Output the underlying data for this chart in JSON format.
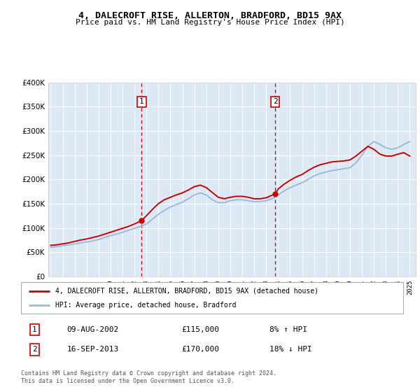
{
  "title": "4, DALECROFT RISE, ALLERTON, BRADFORD, BD15 9AX",
  "subtitle": "Price paid vs. HM Land Registry's House Price Index (HPI)",
  "legend_label_red": "4, DALECROFT RISE, ALLERTON, BRADFORD, BD15 9AX (detached house)",
  "legend_label_blue": "HPI: Average price, detached house, Bradford",
  "marker1_label": "1",
  "marker1_date": "09-AUG-2002",
  "marker1_price": "£115,000",
  "marker1_hpi": "8% ↑ HPI",
  "marker2_label": "2",
  "marker2_date": "16-SEP-2013",
  "marker2_price": "£170,000",
  "marker2_hpi": "18% ↓ HPI",
  "footer": "Contains HM Land Registry data © Crown copyright and database right 2024.\nThis data is licensed under the Open Government Licence v3.0.",
  "plot_bg_color": "#dce9f5",
  "fig_bg_color": "#ffffff",
  "line_red_color": "#cc0000",
  "line_blue_color": "#99bbdd",
  "marker_x1": 2002.6,
  "marker_y1": 115000,
  "marker_x2": 2013.75,
  "marker_y2": 170000,
  "ylim": [
    0,
    400000
  ],
  "xlim": [
    1994.8,
    2025.5
  ],
  "hpi_data": {
    "years": [
      1995.0,
      1995.5,
      1996.0,
      1996.5,
      1997.0,
      1997.5,
      1998.0,
      1998.5,
      1999.0,
      1999.5,
      2000.0,
      2000.5,
      2001.0,
      2001.5,
      2002.0,
      2002.5,
      2003.0,
      2003.5,
      2004.0,
      2004.5,
      2005.0,
      2005.5,
      2006.0,
      2006.5,
      2007.0,
      2007.5,
      2008.0,
      2008.5,
      2009.0,
      2009.5,
      2010.0,
      2010.5,
      2011.0,
      2011.5,
      2012.0,
      2012.5,
      2013.0,
      2013.5,
      2014.0,
      2014.5,
      2015.0,
      2015.5,
      2016.0,
      2016.5,
      2017.0,
      2017.5,
      2018.0,
      2018.5,
      2019.0,
      2019.5,
      2020.0,
      2020.5,
      2021.0,
      2021.5,
      2022.0,
      2022.5,
      2023.0,
      2023.5,
      2024.0,
      2024.5,
      2025.0
    ],
    "values": [
      60000,
      61000,
      63000,
      65000,
      67000,
      69000,
      71000,
      73000,
      76000,
      80000,
      84000,
      87000,
      91000,
      95000,
      99000,
      103000,
      108000,
      118000,
      128000,
      136000,
      143000,
      148000,
      153000,
      160000,
      168000,
      172000,
      168000,
      158000,
      152000,
      152000,
      156000,
      158000,
      158000,
      156000,
      154000,
      154000,
      156000,
      160000,
      168000,
      176000,
      183000,
      188000,
      193000,
      200000,
      207000,
      212000,
      215000,
      218000,
      220000,
      222000,
      224000,
      234000,
      250000,
      268000,
      278000,
      272000,
      265000,
      262000,
      265000,
      272000,
      278000
    ]
  },
  "red_data": {
    "years": [
      1995.0,
      1995.5,
      1996.0,
      1996.5,
      1997.0,
      1997.5,
      1998.0,
      1998.5,
      1999.0,
      1999.5,
      2000.0,
      2000.5,
      2001.0,
      2001.5,
      2002.0,
      2002.6,
      2003.0,
      2003.5,
      2004.0,
      2004.5,
      2005.0,
      2005.5,
      2006.0,
      2006.5,
      2007.0,
      2007.5,
      2008.0,
      2008.5,
      2009.0,
      2009.5,
      2010.0,
      2010.5,
      2011.0,
      2011.5,
      2012.0,
      2012.5,
      2013.0,
      2013.75,
      2014.0,
      2014.5,
      2015.0,
      2015.5,
      2016.0,
      2016.5,
      2017.0,
      2017.5,
      2018.0,
      2018.5,
      2019.0,
      2019.5,
      2020.0,
      2020.5,
      2021.0,
      2021.5,
      2022.0,
      2022.5,
      2023.0,
      2023.5,
      2024.0,
      2024.5,
      2025.0
    ],
    "values": [
      64000,
      65000,
      67000,
      69000,
      72000,
      75000,
      77000,
      80000,
      83000,
      87000,
      91000,
      95000,
      99000,
      103000,
      108000,
      115000,
      125000,
      138000,
      150000,
      158000,
      163000,
      168000,
      172000,
      178000,
      185000,
      188000,
      183000,
      173000,
      163000,
      160000,
      163000,
      165000,
      165000,
      163000,
      160000,
      160000,
      162000,
      170000,
      180000,
      190000,
      198000,
      205000,
      210000,
      218000,
      225000,
      230000,
      233000,
      236000,
      237000,
      238000,
      240000,
      248000,
      258000,
      268000,
      262000,
      252000,
      248000,
      248000,
      252000,
      255000,
      248000
    ]
  }
}
